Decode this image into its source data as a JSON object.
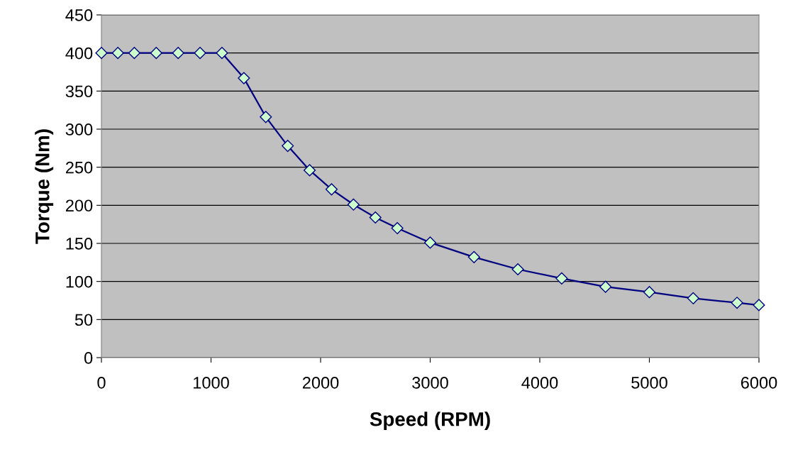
{
  "chart_data": {
    "type": "line",
    "xlabel": "Speed (RPM)",
    "ylabel": "Torque (Nm)",
    "x": [
      0,
      150,
      300,
      500,
      700,
      900,
      1100,
      1300,
      1500,
      1700,
      1900,
      2100,
      2300,
      2500,
      2700,
      3000,
      3400,
      3800,
      4200,
      4600,
      5000,
      5400,
      5800,
      6000
    ],
    "series": [
      {
        "color": "#000080",
        "values": [
          400,
          400,
          400,
          400,
          400,
          400,
          400,
          367,
          316,
          278,
          246,
          221,
          201,
          184,
          170,
          151,
          132,
          116,
          104,
          93,
          86,
          78,
          72,
          69
        ]
      }
    ],
    "xlim": [
      0,
      6000
    ],
    "xticks": [
      0,
      1000,
      2000,
      3000,
      4000,
      5000,
      6000
    ],
    "ylim": [
      0,
      450
    ],
    "yticks": [
      0,
      50,
      100,
      150,
      200,
      250,
      300,
      350,
      400,
      450
    ],
    "grid": "y",
    "marker": "diamond",
    "line_style": "solid",
    "legend": false
  }
}
